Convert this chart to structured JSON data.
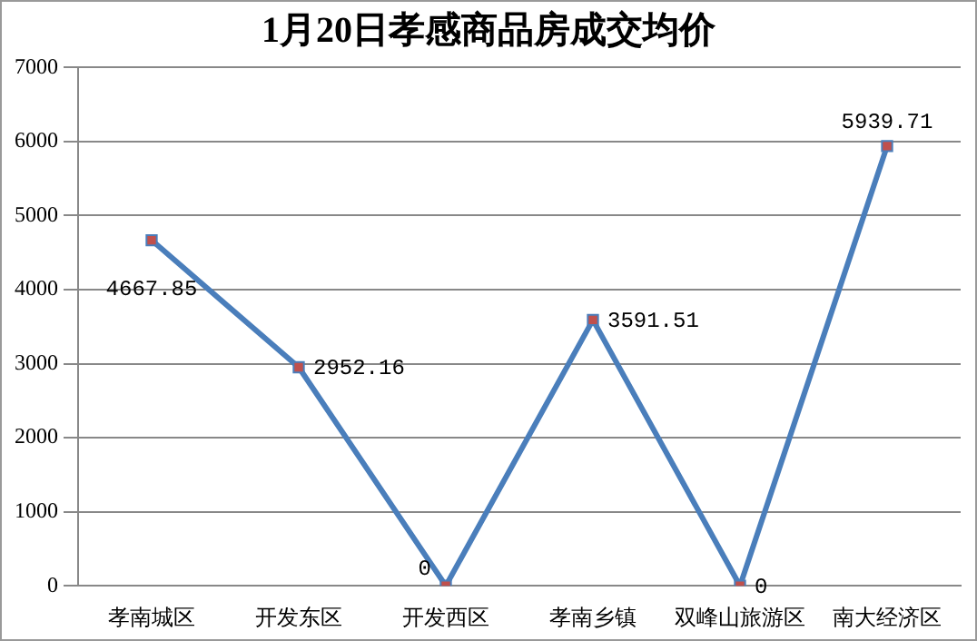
{
  "chart_data": {
    "type": "line",
    "title": "1月20日孝感商品房成交均价",
    "categories": [
      "孝南城区",
      "开发东区",
      "开发西区",
      "孝南乡镇",
      "双峰山旅游区",
      "南大经济区"
    ],
    "series": [
      {
        "color": "#4a7ebb",
        "values": [
          4667.85,
          2952.16,
          0,
          3591.51,
          0,
          5939.71
        ]
      }
    ],
    "ylim": [
      0,
      7000
    ],
    "yticks": [
      0,
      1000,
      2000,
      3000,
      4000,
      5000,
      6000,
      7000
    ],
    "grid": "y",
    "legend": false,
    "marker": "square",
    "line_style": "solid",
    "data_labels": true
  }
}
